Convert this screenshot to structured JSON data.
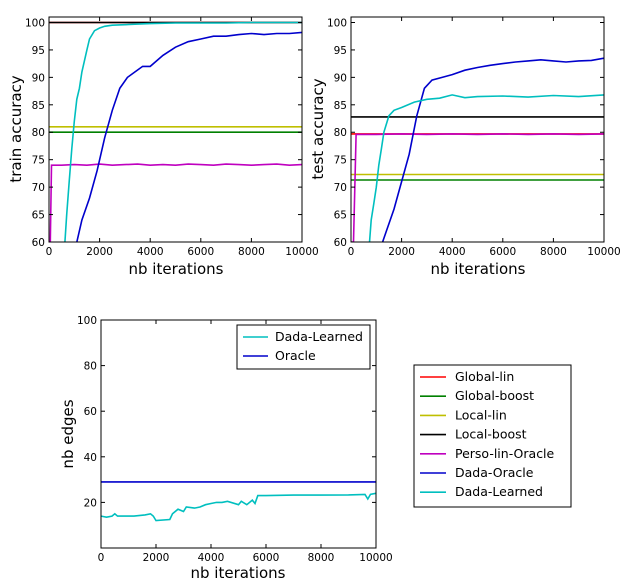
{
  "chart_data": [
    {
      "type": "line",
      "xlabel": "nb iterations",
      "ylabel": "train accuracy",
      "xlim": [
        0,
        10000
      ],
      "ylim": [
        60,
        101
      ],
      "xticks": [
        0,
        2000,
        4000,
        6000,
        8000,
        10000
      ],
      "yticks": [
        60,
        65,
        70,
        75,
        80,
        85,
        90,
        95,
        100
      ],
      "series": [
        {
          "name": "Global-lin",
          "color": "#ff0000",
          "x": [
            0,
            10000
          ],
          "y": [
            100,
            100
          ]
        },
        {
          "name": "Global-boost",
          "color": "#008000",
          "x": [
            0,
            10000
          ],
          "y": [
            80,
            80
          ]
        },
        {
          "name": "Local-lin",
          "color": "#bfbf00",
          "x": [
            0,
            10000
          ],
          "y": [
            81,
            81
          ]
        },
        {
          "name": "Local-boost",
          "color": "#000000",
          "x": [
            0,
            10000
          ],
          "y": [
            100,
            100
          ]
        },
        {
          "name": "Perso-lin-Oracle",
          "color": "#bf00bf",
          "x": [
            0,
            50,
            100,
            500,
            1000,
            1500,
            2000,
            2500,
            3000,
            3500,
            4000,
            4500,
            5000,
            5500,
            6000,
            6500,
            7000,
            7500,
            8000,
            8500,
            9000,
            9500,
            10000
          ],
          "y": [
            60,
            60,
            74,
            74,
            74.1,
            74,
            74.2,
            74,
            74.1,
            74.2,
            74,
            74.1,
            74,
            74.2,
            74.1,
            74,
            74.2,
            74.1,
            74,
            74.1,
            74.2,
            74,
            74.1
          ]
        },
        {
          "name": "Dada-Oracle",
          "color": "#0000cc",
          "x": [
            1000,
            1300,
            1600,
            1900,
            2200,
            2500,
            2800,
            3100,
            3400,
            3700,
            4000,
            4500,
            5000,
            5500,
            6000,
            6500,
            7000,
            7500,
            8000,
            8500,
            9000,
            9500,
            10000
          ],
          "y": [
            58,
            64,
            68,
            73,
            79,
            84,
            88,
            90,
            91,
            92,
            92,
            94,
            95.5,
            96.5,
            97,
            97.5,
            97.5,
            97.8,
            98,
            97.8,
            98,
            98,
            98.2
          ]
        },
        {
          "name": "Dada-Learned",
          "color": "#00bfbf",
          "x": [
            600,
            700,
            800,
            900,
            1000,
            1100,
            1200,
            1300,
            1400,
            1500,
            1600,
            1800,
            2000,
            2200,
            2500,
            3000,
            3500,
            4000,
            5000,
            6000,
            7000,
            8000,
            9000,
            10000
          ],
          "y": [
            58,
            65,
            71,
            77,
            82,
            86,
            88,
            91,
            93,
            95,
            97,
            98.5,
            99,
            99.3,
            99.5,
            99.6,
            99.7,
            99.8,
            99.9,
            99.9,
            99.9,
            100,
            100,
            100
          ]
        }
      ]
    },
    {
      "type": "line",
      "xlabel": "nb iterations",
      "ylabel": "test accuracy",
      "xlim": [
        0,
        10000
      ],
      "ylim": [
        60,
        101
      ],
      "xticks": [
        0,
        2000,
        4000,
        6000,
        8000,
        10000
      ],
      "yticks": [
        60,
        65,
        70,
        75,
        80,
        85,
        90,
        95,
        100
      ],
      "series": [
        {
          "name": "Global-lin",
          "color": "#ff0000",
          "x": [
            0,
            10000
          ],
          "y": [
            79.7,
            79.7
          ]
        },
        {
          "name": "Global-boost",
          "color": "#008000",
          "x": [
            0,
            10000
          ],
          "y": [
            71.3,
            71.3
          ]
        },
        {
          "name": "Local-lin",
          "color": "#bfbf00",
          "x": [
            0,
            10000
          ],
          "y": [
            72.3,
            72.3
          ]
        },
        {
          "name": "Local-boost",
          "color": "#000000",
          "x": [
            0,
            10000
          ],
          "y": [
            82.8,
            82.8
          ]
        },
        {
          "name": "Perso-lin-Oracle",
          "color": "#bf00bf",
          "x": [
            0,
            100,
            200,
            1000,
            2000,
            3000,
            4000,
            5000,
            6000,
            7000,
            8000,
            9000,
            10000
          ],
          "y": [
            60,
            60,
            79.6,
            79.6,
            79.7,
            79.6,
            79.7,
            79.6,
            79.7,
            79.6,
            79.7,
            79.6,
            79.7
          ]
        },
        {
          "name": "Dada-Oracle",
          "color": "#0000cc",
          "x": [
            1100,
            1400,
            1700,
            2000,
            2300,
            2600,
            2900,
            3200,
            3600,
            4000,
            4500,
            5000,
            5500,
            6000,
            6500,
            7000,
            7500,
            8000,
            8500,
            9000,
            9500,
            10000
          ],
          "y": [
            58,
            62,
            66,
            71,
            76,
            83,
            88,
            89.5,
            90,
            90.5,
            91.3,
            91.8,
            92.2,
            92.5,
            92.8,
            93,
            93.2,
            93,
            92.8,
            93,
            93.1,
            93.5
          ]
        },
        {
          "name": "Dada-Learned",
          "color": "#00bfbf",
          "x": [
            700,
            800,
            900,
            1000,
            1100,
            1200,
            1300,
            1400,
            1500,
            1700,
            2000,
            2500,
            3000,
            3500,
            4000,
            4500,
            5000,
            6000,
            7000,
            8000,
            9000,
            10000
          ],
          "y": [
            58,
            64,
            67,
            70,
            74,
            77,
            80,
            81.5,
            83,
            84,
            84.5,
            85.5,
            86,
            86.2,
            86.8,
            86.3,
            86.5,
            86.6,
            86.4,
            86.7,
            86.5,
            86.8
          ]
        }
      ]
    },
    {
      "type": "line",
      "xlabel": "nb edges",
      "ylabel": "",
      "xlim": [
        0,
        10000
      ],
      "ylim": [
        0,
        100
      ],
      "xticks": [
        0,
        2000,
        4000,
        6000,
        8000,
        10000
      ],
      "yticks": [
        20,
        40,
        60,
        80,
        100
      ],
      "series": [
        {
          "name": "Dada-Learned",
          "color": "#00bfbf",
          "x": [
            0,
            200,
            400,
            500,
            600,
            800,
            1200,
            1600,
            1800,
            1900,
            2000,
            2500,
            2600,
            2800,
            3000,
            3100,
            3400,
            3600,
            3800,
            4000,
            4200,
            4400,
            4600,
            5000,
            5100,
            5300,
            5500,
            5600,
            5700,
            6000,
            7000,
            8000,
            9000,
            9600,
            9700,
            9800,
            10000
          ],
          "y": [
            14,
            13.5,
            14,
            15,
            14,
            14,
            14,
            14.5,
            15,
            14,
            12,
            12.5,
            15,
            17,
            16,
            18,
            17.5,
            18,
            19,
            19.5,
            20,
            20,
            20.5,
            19,
            20.5,
            19,
            21,
            19.5,
            23,
            23,
            23.2,
            23.2,
            23.3,
            23.5,
            21.5,
            23.5,
            24
          ]
        },
        {
          "name": "Oracle",
          "color": "#0000cc",
          "x": [
            0,
            10000
          ],
          "y": [
            29,
            29
          ]
        }
      ]
    }
  ],
  "bottom_xlabel": "nb iterations",
  "bottom_legend": [
    "Dada-Learned",
    "Oracle"
  ],
  "main_legend": [
    {
      "label": "Global-lin",
      "color": "#ff0000"
    },
    {
      "label": "Global-boost",
      "color": "#008000"
    },
    {
      "label": "Local-lin",
      "color": "#bfbf00"
    },
    {
      "label": "Local-boost",
      "color": "#000000"
    },
    {
      "label": "Perso-lin-Oracle",
      "color": "#bf00bf"
    },
    {
      "label": "Dada-Oracle",
      "color": "#0000cc"
    },
    {
      "label": "Dada-Learned",
      "color": "#00bfbf"
    }
  ]
}
